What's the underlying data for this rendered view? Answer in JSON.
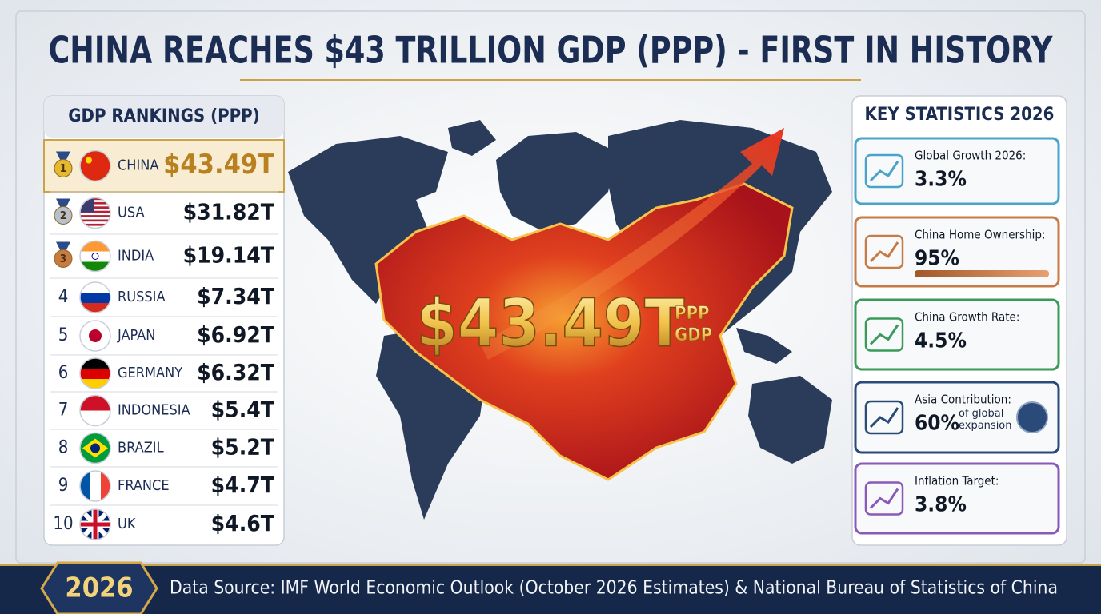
{
  "header": {
    "title": "CHINA REACHES $43 TRILLION GDP (PPP) - FIRST IN HISTORY"
  },
  "rankings": {
    "title": "GDP RANKINGS (PPP)",
    "rows": [
      {
        "rank": "1",
        "country": "CHINA",
        "gdp": "$43.49T"
      },
      {
        "rank": "2",
        "country": "USA",
        "gdp": "$31.82T"
      },
      {
        "rank": "3",
        "country": "INDIA",
        "gdp": "$19.14T"
      },
      {
        "rank": "4",
        "country": "RUSSIA",
        "gdp": "$7.34T"
      },
      {
        "rank": "5",
        "country": "JAPAN",
        "gdp": "$6.92T"
      },
      {
        "rank": "6",
        "country": "GERMANY",
        "gdp": "$6.32T"
      },
      {
        "rank": "7",
        "country": "INDONESIA",
        "gdp": "$5.4T"
      },
      {
        "rank": "8",
        "country": "BRAZIL",
        "gdp": "$5.2T"
      },
      {
        "rank": "9",
        "country": "FRANCE",
        "gdp": "$4.7T"
      },
      {
        "rank": "10",
        "country": "UK",
        "gdp": "$4.6T"
      }
    ]
  },
  "highlight": {
    "value": "$43.49T",
    "unit_top": "PPP",
    "unit_bottom": "GDP"
  },
  "key_statistics": {
    "title": "KEY STATISTICS 2026",
    "items": [
      {
        "label": "Global Growth 2026:",
        "value": "3.3%"
      },
      {
        "label": "China Home Ownership:",
        "value": "95%"
      },
      {
        "label": "China Growth Rate:",
        "value": "4.5%"
      },
      {
        "label": "Asia Contribution:",
        "value": "60%",
        "note": "of global expansion"
      },
      {
        "label": "Inflation Target:",
        "value": "3.8%"
      }
    ]
  },
  "footer": {
    "year": "2026",
    "source": "Data Source: IMF World Economic Outlook (October 2026 Estimates) & National Bureau of Statistics of China"
  }
}
